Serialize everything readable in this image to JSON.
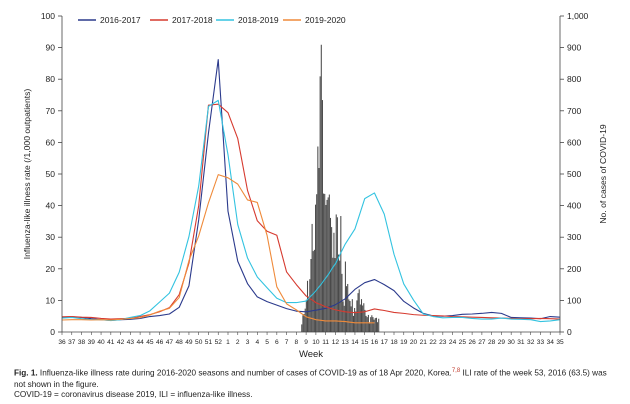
{
  "chart_data": {
    "type": "line",
    "yaxis_left": {
      "label": "Influenza-like illness rate (/1,000 outpatients)",
      "range": [
        0,
        100
      ],
      "ticks": [
        "0",
        "10",
        "20",
        "30",
        "40",
        "50",
        "60",
        "70",
        "80",
        "90",
        "100"
      ]
    },
    "yaxis_right": {
      "label": "No. of cases of COVID-19",
      "range": [
        0,
        1000
      ],
      "ticks": [
        "0",
        "100",
        "200",
        "300",
        "400",
        "500",
        "600",
        "700",
        "800",
        "900",
        "1,000"
      ]
    },
    "xaxis": {
      "label": "Week",
      "categories": [
        "36",
        "37",
        "38",
        "39",
        "40",
        "41",
        "42",
        "43",
        "44",
        "45",
        "46",
        "47",
        "48",
        "49",
        "50",
        "51",
        "52",
        "1",
        "2",
        "3",
        "4",
        "5",
        "6",
        "7",
        "8",
        "9",
        "10",
        "11",
        "12",
        "13",
        "14",
        "15",
        "16",
        "17",
        "18",
        "19",
        "20",
        "21",
        "22",
        "23",
        "24",
        "25",
        "26",
        "27",
        "28",
        "29",
        "30",
        "31",
        "32",
        "33",
        "34",
        "35"
      ]
    },
    "legend_position": "top",
    "series": [
      {
        "name": "2016-2017",
        "color": "#2b3a8c",
        "values": [
          4.7,
          4.8,
          4.6,
          4.2,
          3.9,
          3.7,
          3.9,
          4.0,
          4.3,
          4.9,
          5.2,
          5.7,
          7.8,
          14.6,
          35.5,
          63.0,
          86.2,
          38.2,
          22.4,
          15.3,
          11.1,
          9.6,
          8.5,
          7.4,
          6.6,
          6.4,
          6.9,
          7.5,
          8.6,
          10.5,
          13.5,
          15.6,
          16.6,
          15.0,
          13.1,
          9.7,
          7.6,
          5.9,
          5.1,
          5.0,
          5.2,
          5.6,
          5.7,
          5.9,
          6.2,
          5.9,
          4.6,
          4.5,
          4.4,
          4.2,
          4.9,
          4.7
        ]
      },
      {
        "name": "2017-2018",
        "color": "#d63a2f",
        "values": [
          4.8,
          4.9,
          4.7,
          4.6,
          4.3,
          4.1,
          4.2,
          4.3,
          4.9,
          5.5,
          6.4,
          7.7,
          11.8,
          21.8,
          40.0,
          71.8,
          72.1,
          69.4,
          61.2,
          44.8,
          35.2,
          31.9,
          30.6,
          19.0,
          15.0,
          11.4,
          9.3,
          8.0,
          7.0,
          6.4,
          6.1,
          6.4,
          7.3,
          6.8,
          6.2,
          5.9,
          5.5,
          5.3,
          5.2,
          5.1,
          4.9,
          4.8,
          4.7,
          4.6,
          4.5,
          4.4,
          4.3,
          4.2,
          4.2,
          4.3,
          4.2,
          4.1
        ]
      },
      {
        "name": "2018-2019",
        "color": "#33c3e0",
        "values": [
          4.4,
          4.6,
          4.2,
          3.9,
          3.9,
          3.6,
          3.9,
          4.6,
          5.2,
          6.7,
          9.5,
          12.3,
          18.9,
          30.2,
          46.2,
          71.4,
          73.3,
          56.1,
          34.0,
          23.4,
          17.4,
          14.0,
          10.7,
          9.3,
          9.3,
          9.8,
          13.0,
          17.0,
          21.6,
          27.8,
          32.6,
          42.2,
          44.0,
          37.3,
          24.6,
          15.2,
          10.1,
          5.7,
          4.9,
          4.5,
          4.6,
          4.6,
          4.3,
          4.1,
          4.1,
          4.4,
          4.1,
          4.0,
          3.9,
          3.3,
          3.5,
          3.9
        ]
      },
      {
        "name": "2019-2020",
        "color": "#ef8a3a",
        "values": [
          3.8,
          3.9,
          3.9,
          3.8,
          3.9,
          3.8,
          4.0,
          4.3,
          4.5,
          5.4,
          6.6,
          7.5,
          10.9,
          22.6,
          30.4,
          40.9,
          49.8,
          48.8,
          46.8,
          41.8,
          41.0,
          30.6,
          14.3,
          8.9,
          7.0,
          4.8,
          3.9,
          3.5,
          3.5,
          3.3,
          2.9,
          2.9,
          2.9
        ]
      }
    ],
    "bars": {
      "name": "No. of cases of COVID-19",
      "color": "#4a4a4a",
      "note": "daily COVID-19 confirmed cases plotted from week 8 to week 16 (2020)",
      "values": [
        24,
        53,
        57,
        74,
        102,
        162,
        112,
        167,
        231,
        342,
        256,
        260,
        403,
        436,
        587,
        519,
        809,
        909,
        734,
        438,
        437,
        402,
        418,
        426,
        435,
        361,
        332,
        235,
        314,
        234,
        372,
        363,
        245,
        226,
        367,
        184,
        97,
        83,
        223,
        145,
        152,
        103,
        98,
        81,
        104,
        51,
        76,
        65,
        100,
        123,
        135,
        87,
        104,
        84,
        91,
        70,
        51,
        47,
        54,
        27,
        47,
        53,
        47,
        39,
        44,
        45,
        31,
        42
      ]
    },
    "caption": {
      "fig_label": "Fig. 1.",
      "line1": " Influenza-like illness rate during 2016-2020 seasons and number of cases of COVID-19 as of 18 Apr 2020, Korea.",
      "refs": "7,8",
      "line1b": " ILI rate of the week 53, 2016 (63.5) was not shown in the figure.",
      "line2": "COVID-19 = coronavirus disease 2019, ILI = influenza-like illness."
    }
  }
}
